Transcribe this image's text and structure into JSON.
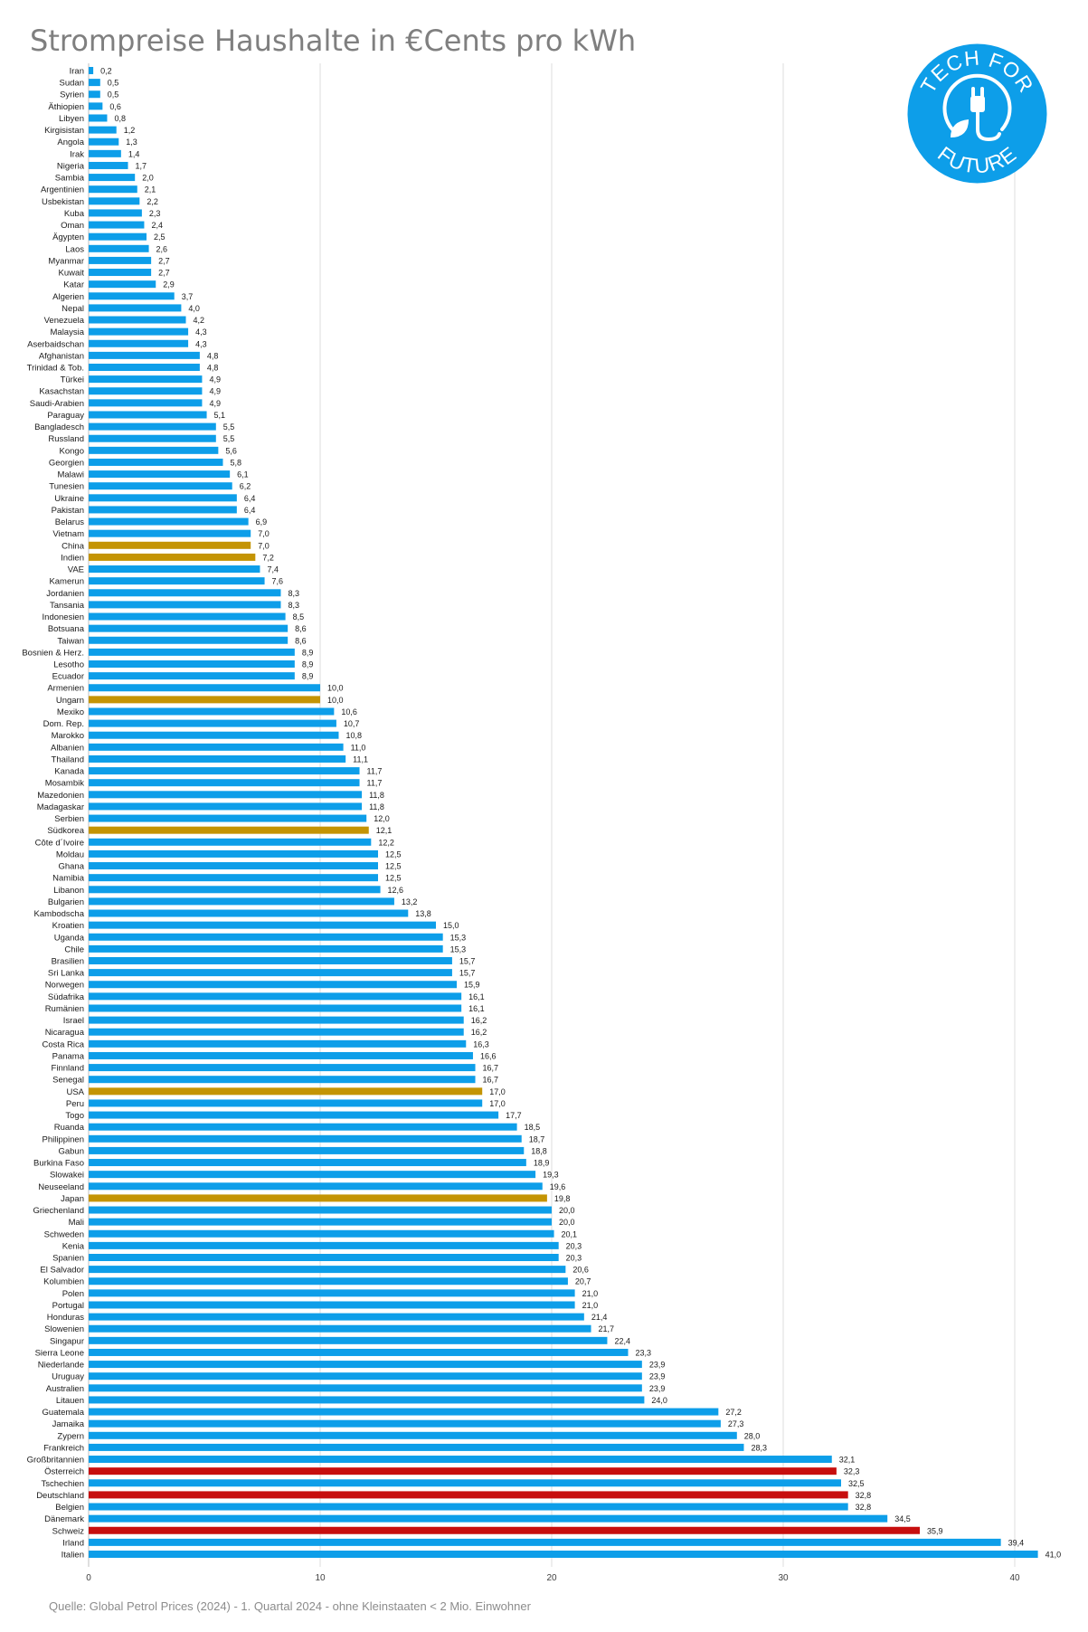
{
  "title": "Strompreise Haushalte in €Cents pro kWh",
  "source": "Quelle: Global Petrol Prices (2024) - 1. Quartal 2024 - ohne Kleinstaaten < 2 Mio. Einwohner",
  "logo": {
    "text_top": "TECH FOR",
    "text_bottom": "FUTURE",
    "icon": "plug-leaf-icon",
    "color": "#0d9ee9"
  },
  "colors": {
    "default": "#0d9ee9",
    "gold": "#c49404",
    "red": "#c70e0e"
  },
  "chart_data": {
    "type": "bar",
    "orientation": "horizontal",
    "xlim": [
      0,
      41
    ],
    "xticks": [
      0,
      10,
      20,
      30,
      40
    ],
    "grid": true,
    "categories": [
      "Iran",
      "Sudan",
      "Syrien",
      "Äthiopien",
      "Libyen",
      "Kirgisistan",
      "Angola",
      "Irak",
      "Nigeria",
      "Sambia",
      "Argentinien",
      "Usbekistan",
      "Kuba",
      "Oman",
      "Ägypten",
      "Laos",
      "Myanmar",
      "Kuwait",
      "Katar",
      "Algerien",
      "Nepal",
      "Venezuela",
      "Malaysia",
      "Aserbaidschan",
      "Afghanistan",
      "Trinidad & Tob.",
      "Türkei",
      "Kasachstan",
      "Saudi-Arabien",
      "Paraguay",
      "Bangladesch",
      "Russland",
      "Kongo",
      "Georgien",
      "Malawi",
      "Tunesien",
      "Ukraine",
      "Pakistan",
      "Belarus",
      "Vietnam",
      "China",
      "Indien",
      "VAE",
      "Kamerun",
      "Jordanien",
      "Tansania",
      "Indonesien",
      "Botsuana",
      "Taiwan",
      "Bosnien & Herz.",
      "Lesotho",
      "Ecuador",
      "Armenien",
      "Ungarn",
      "Mexiko",
      "Dom. Rep.",
      "Marokko",
      "Albanien",
      "Thailand",
      "Kanada",
      "Mosambik",
      "Mazedonien",
      "Madagaskar",
      "Serbien",
      "Südkorea",
      "Côte d´Ivoire",
      "Moldau",
      "Ghana",
      "Namibia",
      "Libanon",
      "Bulgarien",
      "Kambodscha",
      "Kroatien",
      "Uganda",
      "Chile",
      "Brasilien",
      "Sri Lanka",
      "Norwegen",
      "Südafrika",
      "Rumänien",
      "Israel",
      "Nicaragua",
      "Costa Rica",
      "Panama",
      "Finnland",
      "Senegal",
      "USA",
      "Peru",
      "Togo",
      "Ruanda",
      "Philippinen",
      "Gabun",
      "Burkina Faso",
      "Slowakei",
      "Neuseeland",
      "Japan",
      "Griechenland",
      "Mali",
      "Schweden",
      "Kenia",
      "Spanien",
      "El Salvador",
      "Kolumbien",
      "Polen",
      "Portugal",
      "Honduras",
      "Slowenien",
      "Singapur",
      "Sierra Leone",
      "Niederlande",
      "Uruguay",
      "Australien",
      "Litauen",
      "Guatemala",
      "Jamaika",
      "Zypern",
      "Frankreich",
      "Großbritannien",
      "Österreich",
      "Tschechien",
      "Deutschland",
      "Belgien",
      "Dänemark",
      "Schweiz",
      "Irland",
      "Italien"
    ],
    "values": [
      0.2,
      0.5,
      0.5,
      0.6,
      0.8,
      1.2,
      1.3,
      1.4,
      1.7,
      2.0,
      2.1,
      2.2,
      2.3,
      2.4,
      2.5,
      2.6,
      2.7,
      2.7,
      2.9,
      3.7,
      4.0,
      4.2,
      4.3,
      4.3,
      4.8,
      4.8,
      4.9,
      4.9,
      4.9,
      5.1,
      5.5,
      5.5,
      5.6,
      5.8,
      6.1,
      6.2,
      6.4,
      6.4,
      6.9,
      7.0,
      7.0,
      7.2,
      7.4,
      7.6,
      8.3,
      8.3,
      8.5,
      8.6,
      8.6,
      8.9,
      8.9,
      8.9,
      10.0,
      10.0,
      10.6,
      10.7,
      10.8,
      11.0,
      11.1,
      11.7,
      11.7,
      11.8,
      11.8,
      12.0,
      12.1,
      12.2,
      12.5,
      12.5,
      12.5,
      12.6,
      13.2,
      13.8,
      15.0,
      15.3,
      15.3,
      15.7,
      15.7,
      15.9,
      16.1,
      16.1,
      16.2,
      16.2,
      16.3,
      16.6,
      16.7,
      16.7,
      17.0,
      17.0,
      17.7,
      18.5,
      18.7,
      18.8,
      18.9,
      19.3,
      19.6,
      19.8,
      20.0,
      20.0,
      20.1,
      20.3,
      20.3,
      20.6,
      20.7,
      21.0,
      21.0,
      21.4,
      21.7,
      22.4,
      23.3,
      23.9,
      23.9,
      23.9,
      24.0,
      27.2,
      27.3,
      28.0,
      28.3,
      32.1,
      32.3,
      32.5,
      32.8,
      32.8,
      34.5,
      35.9,
      39.4,
      41.0
    ],
    "value_labels": [
      "0,2",
      "0,5",
      "0,5",
      "0,6",
      "0,8",
      "1,2",
      "1,3",
      "1,4",
      "1,7",
      "2,0",
      "2,1",
      "2,2",
      "2,3",
      "2,4",
      "2,5",
      "2,6",
      "2,7",
      "2,7",
      "2,9",
      "3,7",
      "4,0",
      "4,2",
      "4,3",
      "4,3",
      "4,8",
      "4,8",
      "4,9",
      "4,9",
      "4,9",
      "5,1",
      "5,5",
      "5,5",
      "5,6",
      "5,8",
      "6,1",
      "6,2",
      "6,4",
      "6,4",
      "6,9",
      "7,0",
      "7,0",
      "7,2",
      "7,4",
      "7,6",
      "8,3",
      "8,3",
      "8,5",
      "8,6",
      "8,6",
      "8,9",
      "8,9",
      "8,9",
      "10,0",
      "10,0",
      "10,6",
      "10,7",
      "10,8",
      "11,0",
      "11,1",
      "11,7",
      "11,7",
      "11,8",
      "11,8",
      "12,0",
      "12,1",
      "12,2",
      "12,5",
      "12,5",
      "12,5",
      "12,6",
      "13,2",
      "13,8",
      "15,0",
      "15,3",
      "15,3",
      "15,7",
      "15,7",
      "15,9",
      "16,1",
      "16,1",
      "16,2",
      "16,2",
      "16,3",
      "16,6",
      "16,7",
      "16,7",
      "17,0",
      "17,0",
      "17,7",
      "18,5",
      "18,7",
      "18,8",
      "18,9",
      "19,3",
      "19,6",
      "19,8",
      "20,0",
      "20,0",
      "20,1",
      "20,3",
      "20,3",
      "20,6",
      "20,7",
      "21,0",
      "21,0",
      "21,4",
      "21,7",
      "22,4",
      "23,3",
      "23,9",
      "23,9",
      "23,9",
      "24,0",
      "27,2",
      "27,3",
      "28,0",
      "28,3",
      "32,1",
      "32,3",
      "32,5",
      "32,8",
      "32,8",
      "34,5",
      "35,9",
      "39,4",
      "41,0"
    ],
    "highlight_gold": [
      "China",
      "Indien",
      "Ungarn",
      "Südkorea",
      "USA",
      "Japan"
    ],
    "highlight_red": [
      "Österreich",
      "Deutschland",
      "Schweiz"
    ]
  }
}
